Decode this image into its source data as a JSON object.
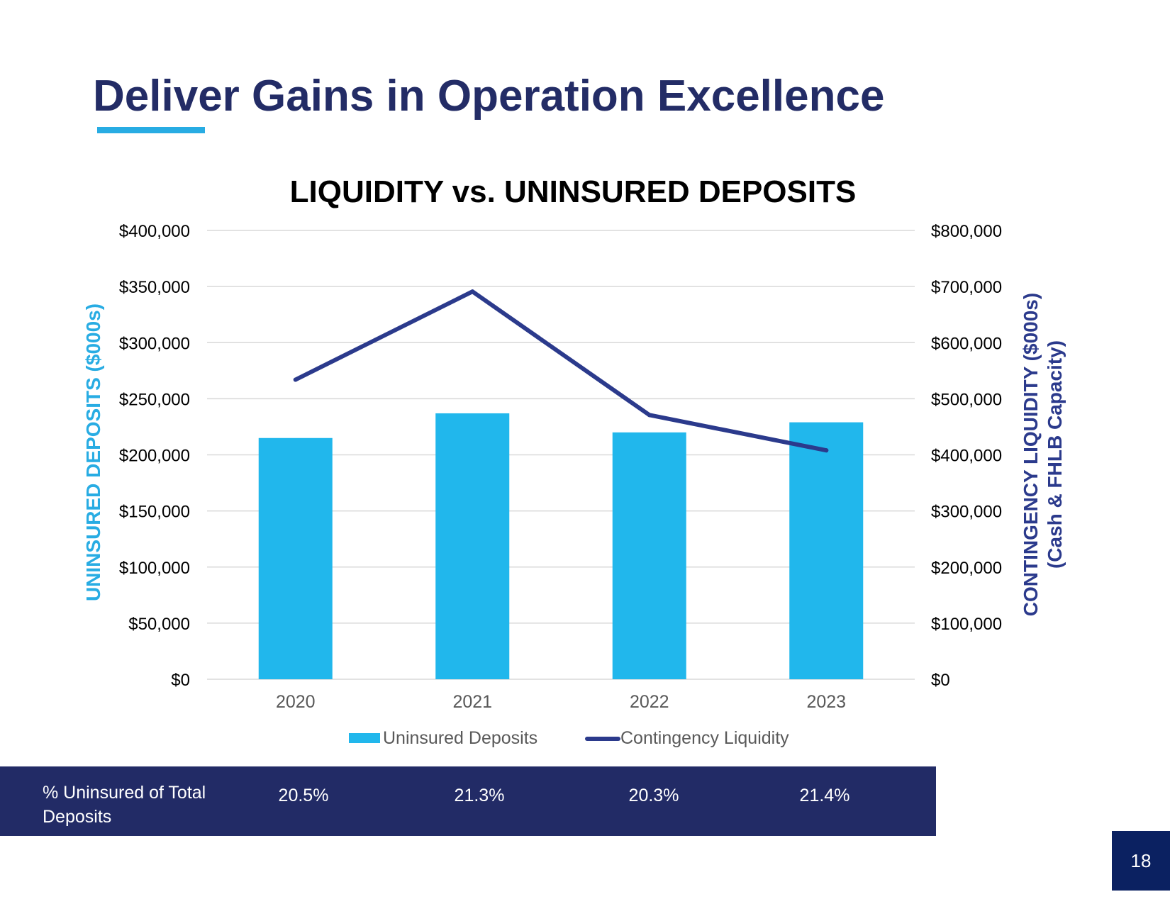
{
  "slide": {
    "title": "Deliver Gains in Operation Excellence",
    "page_number": "18"
  },
  "colors": {
    "title": "#232C66",
    "accent": "#28ACE3",
    "bar": "#21B7EC",
    "line": "#2B3A8C",
    "band": "#222B66",
    "page_box": "#0B2161"
  },
  "chart_data": {
    "type": "bar",
    "title": "LIQUIDITY vs. UNINSURED DEPOSITS",
    "categories": [
      "2020",
      "2021",
      "2022",
      "2023"
    ],
    "series": [
      {
        "name": "Uninsured Deposits",
        "kind": "bar",
        "axis": "left",
        "values": [
          215000,
          237000,
          220000,
          229000
        ]
      },
      {
        "name": "Contingency Liquidity",
        "kind": "line",
        "axis": "right",
        "values": [
          534000,
          691000,
          471000,
          408000
        ]
      }
    ],
    "ylabel": "UNINSURED DEPOSITS ($000s)",
    "y2label_line1": "CONTINGENCY LIQUIDITY ($000s)",
    "y2label_line2": "(Cash & FHLB Capacity)",
    "ylim": [
      0,
      400000
    ],
    "y2lim": [
      0,
      800000
    ],
    "yticks": [
      "$0",
      "$50,000",
      "$100,000",
      "$150,000",
      "$200,000",
      "$250,000",
      "$300,000",
      "$350,000",
      "$400,000"
    ],
    "y2ticks": [
      "$0",
      "$100,000",
      "$200,000",
      "$300,000",
      "$400,000",
      "$500,000",
      "$600,000",
      "$700,000",
      "$800,000"
    ],
    "grid": true,
    "legend": "bottom"
  },
  "table": {
    "label": "% Uninsured of Total Deposits",
    "values": [
      "20.5%",
      "21.3%",
      "20.3%",
      "21.4%"
    ]
  }
}
